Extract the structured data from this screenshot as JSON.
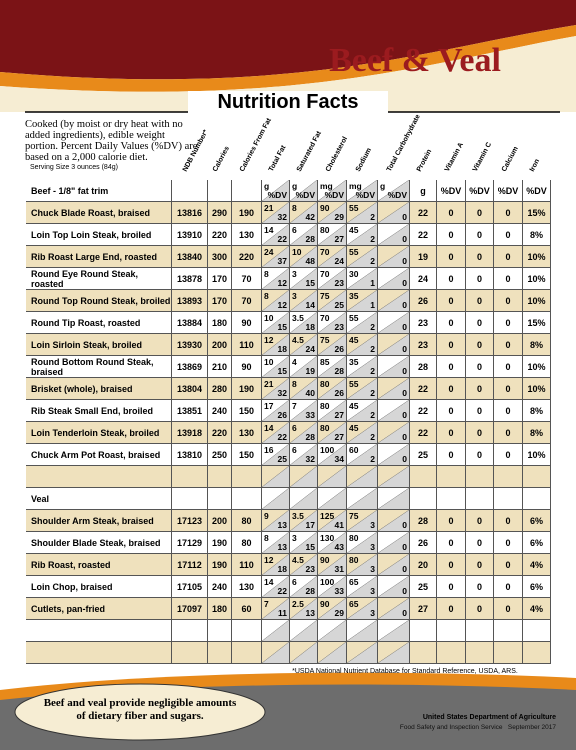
{
  "header": {
    "title": "Beef & Veal",
    "subtitle": "Nutrition Facts",
    "intro": "Cooked (by moist or dry heat with no added ingredients), edible weight portion. Percent Daily Values (%DV) are based on a 2,000 calorie diet.",
    "serving": "Serving Size 3 ounces (84g)"
  },
  "table": {
    "columns": [
      {
        "label": "NDB Number*"
      },
      {
        "label": "Calories"
      },
      {
        "label": "Calories From Fat"
      },
      {
        "label": "Total Fat",
        "units": [
          "g",
          "%DV"
        ]
      },
      {
        "label": "Saturated Fat",
        "units": [
          "g",
          "%DV"
        ]
      },
      {
        "label": "Cholesterol",
        "units": [
          "mg",
          "%DV"
        ]
      },
      {
        "label": "Sodium",
        "units": [
          "mg",
          "%DV"
        ]
      },
      {
        "label": "Total Carbohydrate",
        "units": [
          "g",
          "%DV"
        ]
      },
      {
        "label": "Protein",
        "units": [
          "g"
        ]
      },
      {
        "label": "Vitamin A",
        "units": [
          "%DV"
        ]
      },
      {
        "label": "Vitamin C",
        "units": [
          "%DV"
        ]
      },
      {
        "label": "Calcium",
        "units": [
          "%DV"
        ]
      },
      {
        "label": "Iron",
        "units": [
          "%DV"
        ]
      }
    ],
    "sections": [
      {
        "title": "Beef - 1/8\" fat trim",
        "rows": [
          {
            "name": "Chuck Blade Roast, braised",
            "values": [
              13816,
              290,
              190,
              [
                21,
                32
              ],
              [
                8,
                42
              ],
              [
                90,
                29
              ],
              [
                55,
                2
              ],
              0,
              22,
              0,
              0,
              0,
              "15%"
            ]
          },
          {
            "name": "Loin Top Loin Steak, broiled",
            "values": [
              13910,
              220,
              130,
              [
                14,
                22
              ],
              [
                6,
                28
              ],
              [
                80,
                27
              ],
              [
                45,
                2
              ],
              0,
              22,
              0,
              0,
              0,
              "8%"
            ]
          },
          {
            "name": "Rib Roast Large End, roasted",
            "values": [
              13840,
              300,
              220,
              [
                24,
                37
              ],
              [
                10,
                48
              ],
              [
                70,
                24
              ],
              [
                55,
                2
              ],
              0,
              19,
              0,
              0,
              0,
              "10%"
            ]
          },
          {
            "name": "Round Eye Round Steak, roasted",
            "values": [
              13878,
              170,
              70,
              [
                8,
                12
              ],
              [
                3,
                15
              ],
              [
                70,
                23
              ],
              [
                30,
                1
              ],
              0,
              24,
              0,
              0,
              0,
              "10%"
            ]
          },
          {
            "name": "Round Top Round Steak, broiled",
            "values": [
              13893,
              170,
              70,
              [
                8,
                12
              ],
              [
                3,
                14
              ],
              [
                75,
                25
              ],
              [
                35,
                1
              ],
              0,
              26,
              0,
              0,
              0,
              "10%"
            ]
          },
          {
            "name": "Round Tip Roast, roasted",
            "values": [
              13884,
              180,
              90,
              [
                10,
                15
              ],
              [
                3.5,
                18
              ],
              [
                70,
                23
              ],
              [
                55,
                2
              ],
              0,
              23,
              0,
              0,
              0,
              "15%"
            ]
          },
          {
            "name": "Loin Sirloin Steak, broiled",
            "values": [
              13930,
              200,
              110,
              [
                12,
                18
              ],
              [
                4.5,
                24
              ],
              [
                75,
                26
              ],
              [
                45,
                2
              ],
              0,
              23,
              0,
              0,
              0,
              "8%"
            ]
          },
          {
            "name": "Round Bottom Round Steak, braised",
            "values": [
              13869,
              210,
              90,
              [
                10,
                15
              ],
              [
                4,
                19
              ],
              [
                85,
                28
              ],
              [
                35,
                2
              ],
              0,
              28,
              0,
              0,
              0,
              "10%"
            ]
          },
          {
            "name": "Brisket (whole), braised",
            "values": [
              13804,
              280,
              190,
              [
                21,
                32
              ],
              [
                8,
                40
              ],
              [
                80,
                26
              ],
              [
                55,
                2
              ],
              0,
              22,
              0,
              0,
              0,
              "10%"
            ]
          },
          {
            "name": "Rib Steak Small End, broiled",
            "values": [
              13851,
              240,
              150,
              [
                17,
                26
              ],
              [
                7,
                33
              ],
              [
                80,
                27
              ],
              [
                45,
                2
              ],
              0,
              22,
              0,
              0,
              0,
              "8%"
            ]
          },
          {
            "name": "Loin Tenderloin Steak, broiled",
            "values": [
              13918,
              220,
              130,
              [
                14,
                22
              ],
              [
                6,
                28
              ],
              [
                80,
                27
              ],
              [
                45,
                2
              ],
              0,
              22,
              0,
              0,
              0,
              "8%"
            ]
          },
          {
            "name": "Chuck Arm Pot Roast, braised",
            "values": [
              13810,
              250,
              150,
              [
                16,
                25
              ],
              [
                6,
                32
              ],
              [
                100,
                34
              ],
              [
                60,
                2
              ],
              0,
              25,
              0,
              0,
              0,
              "10%"
            ]
          }
        ]
      },
      {
        "title": "Veal",
        "rows": [
          {
            "name": "Shoulder Arm Steak, braised",
            "values": [
              17123,
              200,
              80,
              [
                9,
                13
              ],
              [
                3.5,
                17
              ],
              [
                125,
                41
              ],
              [
                75,
                3
              ],
              0,
              28,
              0,
              0,
              0,
              "6%"
            ]
          },
          {
            "name": "Shoulder Blade Steak, braised",
            "values": [
              17129,
              190,
              80,
              [
                8,
                13
              ],
              [
                3,
                15
              ],
              [
                130,
                43
              ],
              [
                80,
                3
              ],
              0,
              26,
              0,
              0,
              0,
              "6%"
            ]
          },
          {
            "name": "Rib Roast, roasted",
            "values": [
              17112,
              190,
              110,
              [
                12,
                18
              ],
              [
                4.5,
                23
              ],
              [
                90,
                31
              ],
              [
                80,
                3
              ],
              0,
              20,
              0,
              0,
              0,
              "4%"
            ]
          },
          {
            "name": "Loin Chop, braised",
            "values": [
              17105,
              240,
              130,
              [
                14,
                22
              ],
              [
                6,
                28
              ],
              [
                100,
                33
              ],
              [
                65,
                3
              ],
              0,
              25,
              0,
              0,
              0,
              "6%"
            ]
          },
          {
            "name": "Cutlets, pan-fried",
            "values": [
              17097,
              180,
              60,
              [
                7,
                11
              ],
              [
                2.5,
                13
              ],
              [
                90,
                29
              ],
              [
                65,
                3
              ],
              0,
              27,
              0,
              0,
              0,
              "4%"
            ]
          }
        ]
      }
    ],
    "footnote": "*USDA National Nutrient Database for Standard Reference, USDA, ARS."
  },
  "footer": {
    "note": "Beef and veal provide negligible amounts of dietary fiber and sugars.",
    "agency": "United States Department of Agriculture",
    "office": "Food Safety and Inspection Service   September 2017"
  }
}
